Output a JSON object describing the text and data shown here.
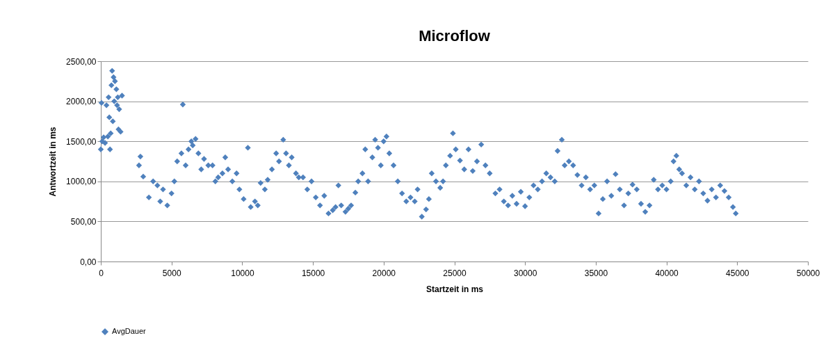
{
  "chart_data": {
    "type": "scatter",
    "title": "Microflow",
    "xlabel": "Startzeit in ms",
    "ylabel": "Antwortzeit in ms",
    "xlim": [
      0,
      50000
    ],
    "xticks": [
      0,
      5000,
      10000,
      15000,
      20000,
      25000,
      30000,
      35000,
      40000,
      45000,
      50000
    ],
    "ylim": [
      0,
      2500
    ],
    "yticks": [
      {
        "value": 0,
        "label": "0,00"
      },
      {
        "value": 500,
        "label": "500,00"
      },
      {
        "value": 1000,
        "label": "1000,00"
      },
      {
        "value": 1500,
        "label": "1500,00"
      },
      {
        "value": 2000,
        "label": "2000,00"
      },
      {
        "value": 2500,
        "label": "2500,00"
      }
    ],
    "grid": "y",
    "legend": "bottom",
    "marker": "diamond",
    "series": [
      {
        "name": "AvgDauer",
        "color": "#4f81bd",
        "x": [
          0,
          50,
          100,
          200,
          300,
          400,
          500,
          550,
          600,
          650,
          700,
          750,
          800,
          850,
          900,
          950,
          1000,
          1100,
          1150,
          1200,
          1250,
          1300,
          1400,
          1500,
          2700,
          2800,
          3000,
          3400,
          3700,
          4000,
          4200,
          4400,
          4700,
          5000,
          5200,
          5400,
          5700,
          5800,
          6000,
          6200,
          6400,
          6500,
          6700,
          6900,
          7100,
          7300,
          7600,
          7900,
          8100,
          8300,
          8600,
          8800,
          9000,
          9300,
          9600,
          9800,
          10100,
          10400,
          10600,
          10900,
          11100,
          11300,
          11600,
          11800,
          12100,
          12400,
          12600,
          12900,
          13100,
          13300,
          13500,
          13800,
          14000,
          14300,
          14600,
          14900,
          15200,
          15500,
          15800,
          16100,
          16400,
          16600,
          16800,
          17000,
          17300,
          17500,
          17700,
          18000,
          18200,
          18500,
          18700,
          18900,
          19200,
          19400,
          19600,
          19800,
          20000,
          20200,
          20400,
          20700,
          21000,
          21300,
          21600,
          21900,
          22200,
          22400,
          22700,
          23000,
          23200,
          23400,
          23700,
          24000,
          24200,
          24400,
          24700,
          24900,
          25100,
          25400,
          25700,
          26000,
          26300,
          26600,
          26900,
          27200,
          27500,
          27900,
          28200,
          28500,
          28800,
          29100,
          29400,
          29700,
          30000,
          30300,
          30600,
          30900,
          31200,
          31500,
          31800,
          32100,
          32300,
          32600,
          32800,
          33100,
          33400,
          33700,
          34000,
          34300,
          34600,
          34900,
          35200,
          35500,
          35800,
          36100,
          36400,
          36700,
          37000,
          37300,
          37600,
          37900,
          38200,
          38500,
          38800,
          39100,
          39400,
          39700,
          40000,
          40300,
          40500,
          40700,
          40900,
          41100,
          41400,
          41700,
          42000,
          42300,
          42600,
          42900,
          43200,
          43500,
          43800,
          44100,
          44400,
          44700,
          44900
        ],
        "values": [
          1400,
          1980,
          1500,
          1550,
          1480,
          1950,
          1560,
          2050,
          1800,
          1400,
          1600,
          2200,
          2380,
          1750,
          2300,
          2000,
          2250,
          2150,
          1950,
          2050,
          1650,
          1900,
          1620,
          2070,
          1200,
          1310,
          1060,
          800,
          1000,
          950,
          750,
          900,
          700,
          850,
          1000,
          1250,
          1350,
          1960,
          1200,
          1400,
          1500,
          1450,
          1530,
          1350,
          1150,
          1280,
          1200,
          1200,
          1000,
          1050,
          1100,
          1300,
          1150,
          1000,
          1100,
          900,
          780,
          1420,
          680,
          750,
          700,
          980,
          900,
          1020,
          1150,
          1350,
          1250,
          1520,
          1350,
          1200,
          1300,
          1100,
          1050,
          1050,
          900,
          1000,
          800,
          700,
          820,
          600,
          640,
          680,
          950,
          700,
          620,
          660,
          700,
          860,
          1000,
          1100,
          1400,
          1000,
          1300,
          1520,
          1420,
          1200,
          1500,
          1560,
          1350,
          1200,
          1000,
          850,
          750,
          800,
          750,
          900,
          560,
          650,
          780,
          1100,
          1000,
          920,
          1000,
          1200,
          1320,
          1600,
          1400,
          1260,
          1150,
          1400,
          1130,
          1250,
          1460,
          1200,
          1100,
          850,
          900,
          750,
          700,
          820,
          720,
          870,
          690,
          800,
          950,
          900,
          1000,
          1100,
          1050,
          1000,
          1380,
          1520,
          1200,
          1250,
          1200,
          1080,
          950,
          1050,
          900,
          950,
          600,
          780,
          1000,
          820,
          1090,
          900,
          700,
          850,
          960,
          900,
          720,
          620,
          700,
          1020,
          900,
          950,
          900,
          1000,
          1250,
          1320,
          1150,
          1100,
          950,
          1050,
          900,
          1000,
          850,
          760,
          900,
          800,
          950,
          880,
          800,
          680,
          600
        ]
      }
    ]
  }
}
